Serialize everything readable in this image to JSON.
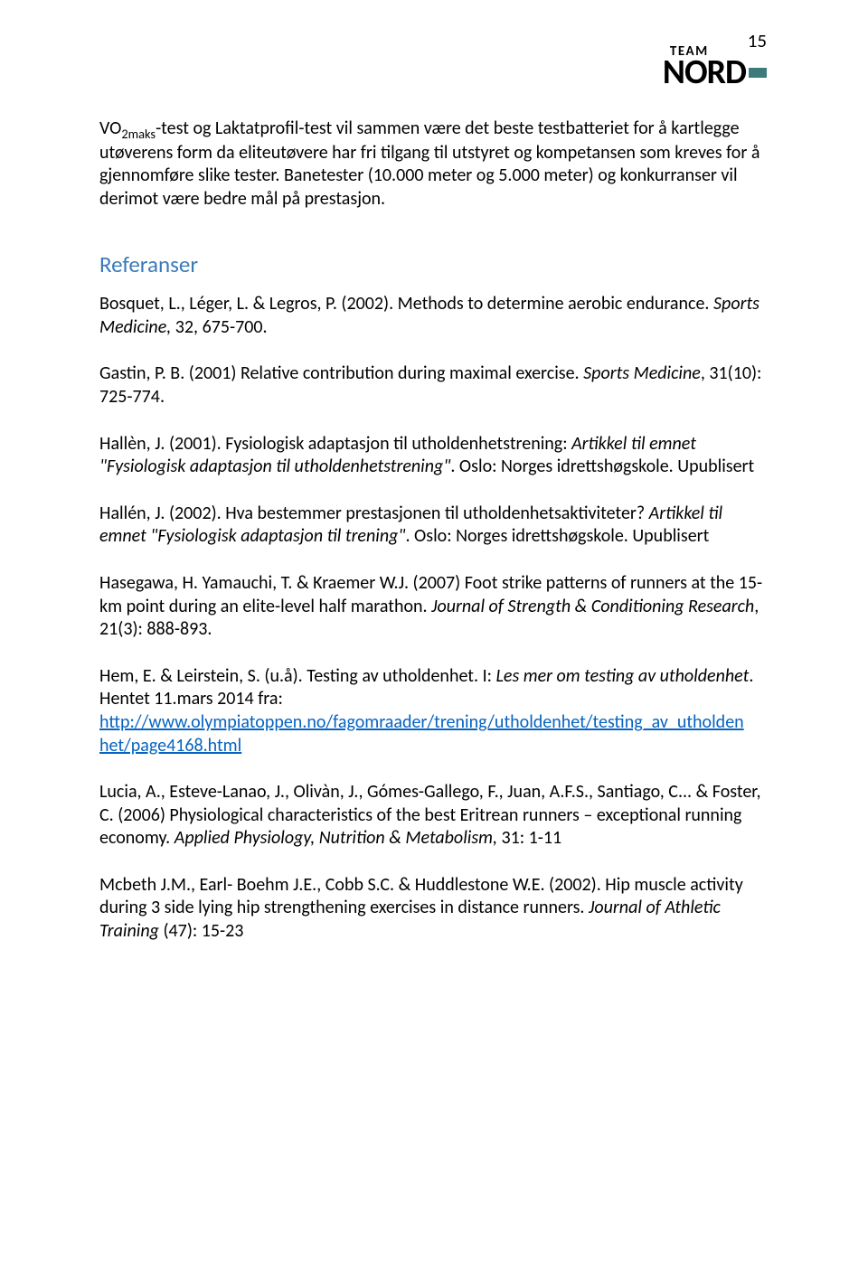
{
  "page_number": "15",
  "logo": {
    "line1": "TEAM",
    "line2": "NORD"
  },
  "intro_paragraph": {
    "pre": "VO",
    "sub": "2maks",
    "rest": "-test og Laktatprofil-test vil sammen være det beste testbatteriet for å kartlegge utøverens form da eliteutøvere har fri tilgang til utstyret og kompetansen som kreves for å gjennomføre slike tester. Banetester (10.000 meter og 5.000 meter) og konkurranser vil derimot være bedre mål på prestasjon."
  },
  "section_heading": "Referanser",
  "refs": {
    "r1": {
      "a": "Bosquet, L., Léger, L. & Legros, P. (2002). Methods to determine aerobic endurance. ",
      "i": "Sports Medicine, ",
      "b": "32, 675-700."
    },
    "r2": {
      "a": "Gastin, P. B. (2001) Relative contribution  during maximal exercise. ",
      "i": "Sports Medicine",
      "b": ", 31(10): 725-774."
    },
    "r3": {
      "a": "Hallèn, J. (2001). Fysiologisk adaptasjon til utholdenhetstrening: ",
      "i": "Artikkel til emnet \"Fysiologisk adaptasjon til utholdenhetstrening\"",
      "b": ". Oslo: Norges idrettshøgskole. Upublisert"
    },
    "r4": {
      "a": "Hallén, J. (2002). Hva bestemmer prestasjonen til utholdenhetsaktiviteter? ",
      "i": "Artikkel til emnet \"Fysiologisk adaptasjon til trening\"",
      "b": ". Oslo: Norges idrettshøgskole. Upublisert"
    },
    "r5": {
      "a": "Hasegawa, H. Yamauchi, T. & Kraemer W.J. (2007) Foot strike patterns of runners at the 15-km point during an elite-level half marathon. ",
      "i": "Journal of Strength & Conditioning Research",
      "b": ", 21(3): 888-893."
    },
    "r6": {
      "a": "Hem, E. & Leirstein, S. (u.å). Testing av utholdenhet. I: ",
      "i": "Les mer om testing av utholdenhet",
      "b": ". Hentet 11.mars 2014 fra:",
      "link1": "http://www.olympiatoppen.no/fagomraader/trening/utholdenhet/testing_av_utholden",
      "link2": "het/page4168.html"
    },
    "r7": {
      "a": "Lucia, A., Esteve-Lanao, J., Olivàn, J., Gómes-Gallego, F., Juan, A.F.S., Santiago, C... & Foster, C. (2006) Physiological characteristics of the best Eritrean runners – exceptional running economy. ",
      "i": "Applied Physiology, Nutrition & Metabolism, ",
      "b": "31: 1-11"
    },
    "r8": {
      "a": "Mcbeth J.M., Earl- Boehm J.E., Cobb S.C. & Huddlestone W.E. (2002). Hip muscle activity during 3 side lying hip strengthening exercises in distance runners. ",
      "i": "Journal of Athletic Training ",
      "b": "(47): 15-23"
    }
  }
}
